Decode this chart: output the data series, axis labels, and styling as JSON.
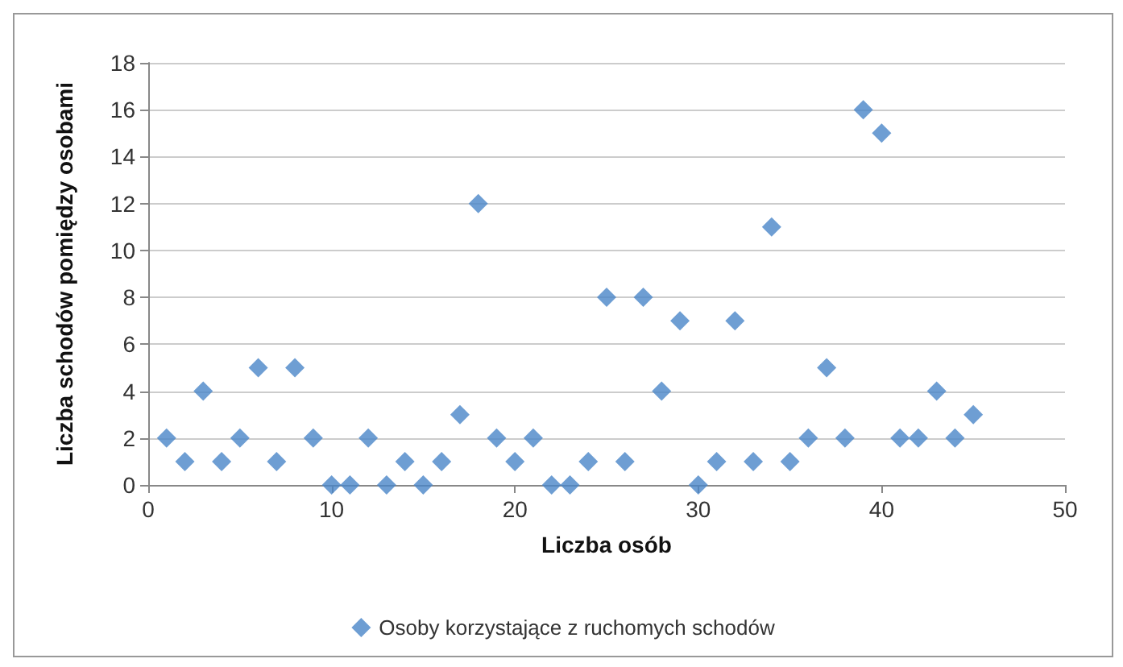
{
  "chart_data": {
    "type": "scatter",
    "xlabel": "Liczba osób",
    "ylabel": "Liczba schodów pomiędzy osobami",
    "x": [
      1,
      2,
      3,
      4,
      5,
      6,
      7,
      8,
      9,
      10,
      11,
      12,
      13,
      14,
      15,
      16,
      17,
      18,
      19,
      20,
      21,
      22,
      23,
      24,
      25,
      26,
      27,
      28,
      29,
      30,
      31,
      32,
      33,
      34,
      35,
      36,
      37,
      38,
      39,
      40,
      41,
      42,
      43,
      44,
      45
    ],
    "series": [
      {
        "name": "Osoby korzystające z ruchomych schodów",
        "color": "#4a86c8",
        "values": [
          2,
          1,
          4,
          1,
          2,
          5,
          1,
          5,
          2,
          0,
          0,
          2,
          0,
          1,
          0,
          1,
          3,
          12,
          2,
          1,
          2,
          0,
          0,
          1,
          8,
          1,
          8,
          4,
          7,
          0,
          1,
          7,
          1,
          11,
          1,
          2,
          5,
          2,
          16,
          15,
          2,
          2,
          4,
          2,
          3
        ]
      }
    ],
    "xlim": [
      0,
      50
    ],
    "xticks": [
      0,
      10,
      20,
      30,
      40,
      50
    ],
    "ylim": [
      0,
      18
    ],
    "yticks": [
      0,
      2,
      4,
      6,
      8,
      10,
      12,
      14,
      16,
      18
    ],
    "grid": "y",
    "legend": "bottom",
    "marker": "diamond"
  }
}
